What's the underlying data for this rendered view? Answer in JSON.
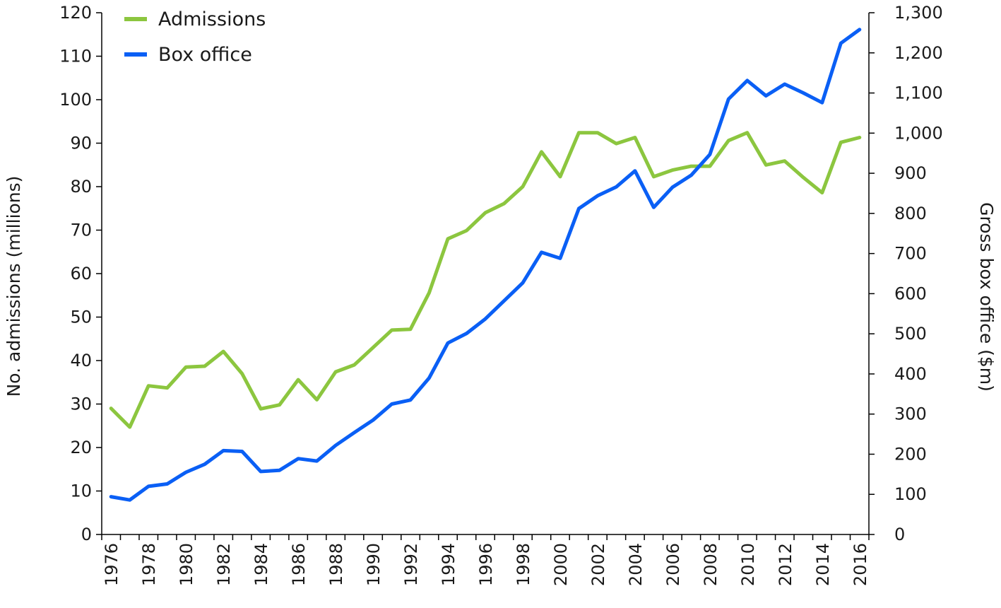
{
  "chart_data": {
    "type": "line",
    "title": "",
    "xlabel": "",
    "ylabel": "No. admissions (millions)",
    "y2label": "Gross box office ($m)",
    "x": [
      1976,
      1977,
      1978,
      1979,
      1980,
      1981,
      1982,
      1983,
      1984,
      1985,
      1986,
      1987,
      1988,
      1989,
      1990,
      1991,
      1992,
      1993,
      1994,
      1995,
      1996,
      1997,
      1998,
      1999,
      2000,
      2001,
      2002,
      2003,
      2004,
      2005,
      2006,
      2007,
      2008,
      2009,
      2010,
      2011,
      2012,
      2013,
      2014,
      2015,
      2016
    ],
    "xticks": [
      "1976",
      "1978",
      "1980",
      "1982",
      "1984",
      "1986",
      "1988",
      "1990",
      "1992",
      "1994",
      "1996",
      "1998",
      "2000",
      "2002",
      "2004",
      "2006",
      "2008",
      "2010",
      "2012",
      "2014",
      "2016"
    ],
    "yticks": [
      "0",
      "10",
      "20",
      "30",
      "40",
      "50",
      "60",
      "70",
      "80",
      "90",
      "100",
      "110",
      "120"
    ],
    "y2ticks": [
      "0",
      "100",
      "200",
      "300",
      "400",
      "500",
      "600",
      "700",
      "800",
      "900",
      "1,000",
      "1,100",
      "1,200",
      "1,300"
    ],
    "ylim": [
      0,
      120
    ],
    "y2lim": [
      0,
      1300
    ],
    "grid": false,
    "legend": "top-left",
    "series": [
      {
        "name": "Admissions",
        "axis": "left",
        "color": "#8cc63f",
        "values": [
          29.0,
          24.7,
          34.2,
          33.7,
          38.5,
          38.7,
          42.1,
          37.0,
          28.9,
          29.8,
          35.6,
          31.0,
          37.4,
          39.0,
          43.0,
          47.0,
          47.2,
          55.6,
          68.0,
          69.9,
          74.0,
          76.1,
          80.0,
          88.0,
          82.3,
          92.4,
          92.4,
          89.9,
          91.3,
          82.3,
          83.8,
          84.7,
          84.7,
          90.6,
          92.4,
          85.0,
          85.9,
          82.1,
          78.6,
          90.2,
          91.3
        ]
      },
      {
        "name": "Box office",
        "axis": "right",
        "color": "#0a5ff5",
        "values": [
          94,
          86,
          120,
          126,
          155,
          175,
          209,
          207,
          157,
          160,
          189,
          183,
          222,
          254,
          285,
          325,
          335,
          390,
          477,
          501,
          537,
          582,
          627,
          703,
          688,
          812,
          844,
          866,
          906,
          815,
          865,
          895,
          947,
          1085,
          1131,
          1093,
          1122,
          1100,
          1076,
          1224,
          1258
        ]
      }
    ]
  }
}
